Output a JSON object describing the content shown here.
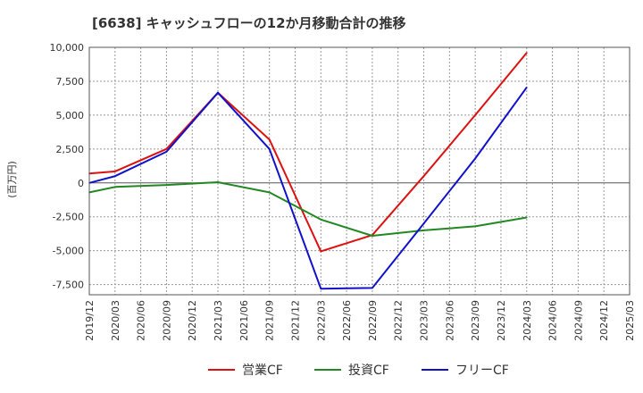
{
  "chart_data": {
    "type": "line",
    "title": "[6638]  キャッシュフローの12か月移動合計の推移",
    "ylabel": "(百万円)",
    "xlabel": "",
    "ylim": [
      -8250,
      10000
    ],
    "yticks": [
      10000,
      7500,
      5000,
      2500,
      0,
      -2500,
      -5000,
      -7500
    ],
    "ytick_labels": [
      "10,000",
      "7,500",
      "5,000",
      "2,500",
      "0",
      "-2,500",
      "-5,000",
      "-7,500"
    ],
    "x_ticks": [
      "2019/12",
      "2020/03",
      "2020/06",
      "2020/09",
      "2020/12",
      "2021/03",
      "2021/06",
      "2021/09",
      "2021/12",
      "2022/03",
      "2022/06",
      "2022/09",
      "2022/12",
      "2023/03",
      "2023/06",
      "2023/09",
      "2023/12",
      "2024/03",
      "2024/06",
      "2024/09",
      "2024/12",
      "2025/03"
    ],
    "grid": true,
    "legend_position": "bottom",
    "series": [
      {
        "name": "営業CF",
        "color": "#dd1111",
        "x": [
          "2019/12",
          "2020/03",
          "2020/09",
          "2021/03",
          "2021/09",
          "2022/03",
          "2022/09",
          "2023/03",
          "2023/09",
          "2024/03"
        ],
        "values": [
          700,
          850,
          2500,
          6650,
          3200,
          -5050,
          -3850,
          500,
          5000,
          9600
        ]
      },
      {
        "name": "投資CF",
        "color": "#228822",
        "x": [
          "2019/12",
          "2020/03",
          "2020/09",
          "2021/03",
          "2021/09",
          "2022/03",
          "2022/09",
          "2023/03",
          "2023/09",
          "2024/03"
        ],
        "values": [
          -700,
          -300,
          -150,
          50,
          -700,
          -2700,
          -3900,
          -3500,
          -3200,
          -2550
        ]
      },
      {
        "name": "フリーCF",
        "color": "#1111cc",
        "x": [
          "2019/12",
          "2020/03",
          "2020/09",
          "2021/03",
          "2021/09",
          "2022/03",
          "2022/09",
          "2023/03",
          "2023/09",
          "2024/03"
        ],
        "values": [
          0,
          500,
          2300,
          6650,
          2500,
          -7800,
          -7750,
          -3000,
          1800,
          7050
        ]
      }
    ]
  }
}
